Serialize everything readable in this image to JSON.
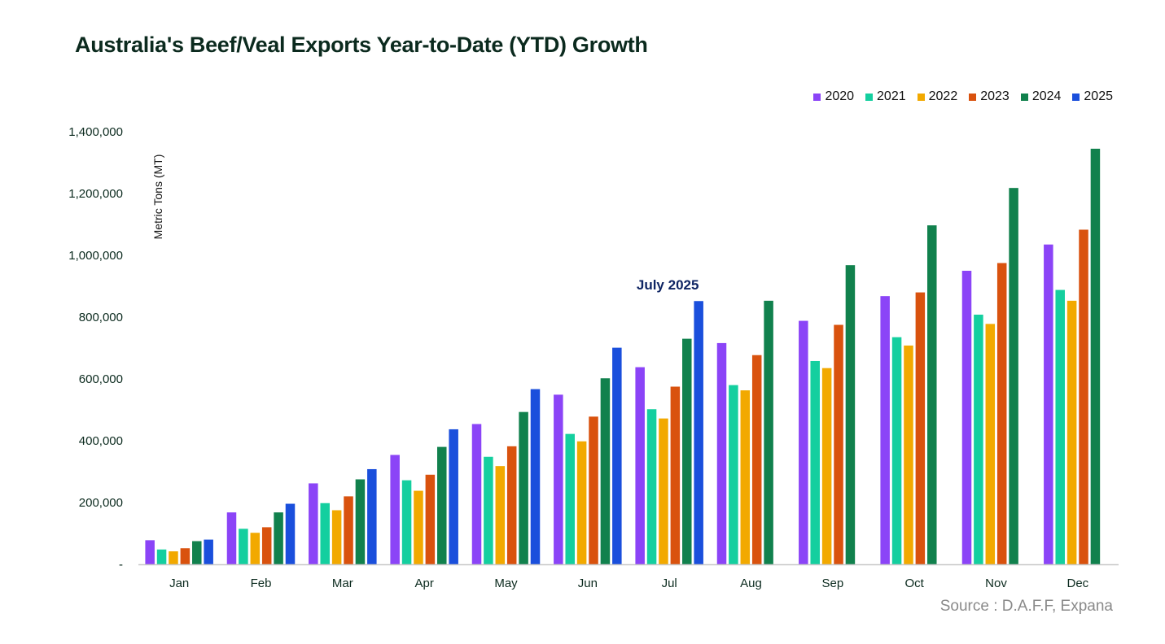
{
  "chart_data": {
    "type": "bar",
    "title": "Australia's Beef/Veal Exports Year-to-Date (YTD) Growth",
    "xlabel": "",
    "ylabel": "Metric Tons (MT)",
    "ylim": [
      0,
      1400000
    ],
    "yticks": [
      0,
      200000,
      400000,
      600000,
      800000,
      1000000,
      1200000,
      1400000
    ],
    "ytick_labels": [
      "-",
      "200,000",
      "400,000",
      "600,000",
      "800,000",
      "1,000,000",
      "1,200,000",
      "1,400,000"
    ],
    "grid": false,
    "legend_position": "top-right",
    "categories": [
      "Jan",
      "Feb",
      "Mar",
      "Apr",
      "May",
      "Jun",
      "Jul",
      "Aug",
      "Sep",
      "Oct",
      "Nov",
      "Dec"
    ],
    "series": [
      {
        "name": "2020",
        "color": "#8b44f7",
        "values": [
          78000,
          168000,
          262000,
          354000,
          454000,
          549000,
          638000,
          716000,
          788000,
          868000,
          950000,
          1035000
        ]
      },
      {
        "name": "2021",
        "color": "#14cf9f",
        "values": [
          48000,
          115000,
          198000,
          272000,
          348000,
          422000,
          502000,
          580000,
          658000,
          735000,
          808000,
          888000
        ]
      },
      {
        "name": "2022",
        "color": "#f2a900",
        "values": [
          42000,
          102000,
          175000,
          238000,
          318000,
          398000,
          472000,
          563000,
          635000,
          708000,
          778000,
          853000
        ]
      },
      {
        "name": "2023",
        "color": "#d9520e",
        "values": [
          52000,
          120000,
          220000,
          290000,
          382000,
          478000,
          575000,
          677000,
          775000,
          880000,
          975000,
          1083000
        ]
      },
      {
        "name": "2024",
        "color": "#11814d",
        "values": [
          75000,
          168000,
          275000,
          380000,
          493000,
          602000,
          730000,
          853000,
          968000,
          1097000,
          1218000,
          1345000
        ]
      },
      {
        "name": "2025",
        "color": "#1a4fdc",
        "values": [
          80000,
          196000,
          308000,
          437000,
          567000,
          701000,
          852000,
          null,
          null,
          null,
          null,
          null
        ]
      }
    ],
    "annotations": [
      {
        "text": "July 2025",
        "category": "Jul",
        "series": "2025"
      }
    ]
  },
  "source": "Source : D.A.F.F, Expana",
  "axis_color": "#c8c8c8"
}
